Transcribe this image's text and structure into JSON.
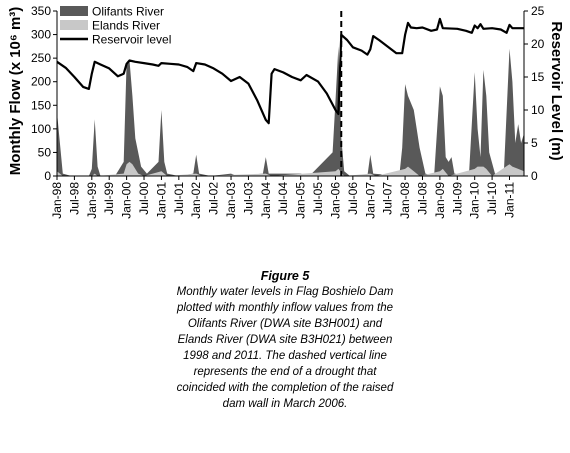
{
  "chart_data": {
    "type": "area+line",
    "ylabel_left": "Monthly Flow (x 10⁶ m³)",
    "ylabel_right": "Reservoir Level (m)",
    "ylim_left": [
      0,
      350
    ],
    "ylim_right": [
      0,
      25
    ],
    "yticks_left": [
      "0",
      "50",
      "100",
      "150",
      "200",
      "250",
      "300",
      "350"
    ],
    "yticks_right": [
      "0",
      "5",
      "10",
      "15",
      "20",
      "25"
    ],
    "x_start": "Jan-98",
    "x_end": "Jun-11",
    "x_ticks": [
      "Jan-98",
      "Jul-98",
      "Jan-99",
      "Jul-99",
      "Jan-00",
      "Jul-00",
      "Jan-01",
      "Jul-01",
      "Jan-02",
      "Jul-02",
      "Jan-03",
      "Jul-03",
      "Jan-04",
      "Jul-04",
      "Jan-05",
      "Jul-05",
      "Jan-06",
      "Jul-06",
      "Jan-07",
      "Jul-07",
      "Jan-08",
      "Jul-08",
      "Jan-09",
      "Jul-09",
      "Jan-10",
      "Jul-10",
      "Jan-11"
    ],
    "legend_placement": "top-left",
    "marker": {
      "date": "Mar-06"
    },
    "series": [
      {
        "name": "Olifants River",
        "kind": "area",
        "axis": "left",
        "color": "#595959",
        "points": [
          [
            "Jan-98",
            135
          ],
          [
            "Mar-98",
            5
          ],
          [
            "Jun-98",
            0
          ],
          [
            "Dec-98",
            0
          ],
          [
            "Jan-99",
            15
          ],
          [
            "Feb-99",
            120
          ],
          [
            "Mar-99",
            20
          ],
          [
            "Apr-99",
            0
          ],
          [
            "Sep-99",
            0
          ],
          [
            "Dec-99",
            30
          ],
          [
            "Jan-00",
            240
          ],
          [
            "Feb-00",
            245
          ],
          [
            "Mar-00",
            170
          ],
          [
            "Apr-00",
            80
          ],
          [
            "Jun-00",
            20
          ],
          [
            "Aug-00",
            5
          ],
          [
            "Dec-00",
            30
          ],
          [
            "Jan-01",
            140
          ],
          [
            "Feb-01",
            30
          ],
          [
            "Mar-01",
            5
          ],
          [
            "Jul-01",
            0
          ],
          [
            "Dec-01",
            5
          ],
          [
            "Jan-02",
            45
          ],
          [
            "Feb-02",
            5
          ],
          [
            "Jun-02",
            0
          ],
          [
            "Jan-03",
            5
          ],
          [
            "Mar-03",
            0
          ],
          [
            "Dec-03",
            5
          ],
          [
            "Jan-04",
            40
          ],
          [
            "Feb-04",
            5
          ],
          [
            "Jan-05",
            5
          ],
          [
            "Apr-05",
            0
          ],
          [
            "Dec-05",
            50
          ],
          [
            "Jan-06",
            160
          ],
          [
            "Feb-06",
            275
          ],
          [
            "Mar-06",
            80
          ],
          [
            "Apr-06",
            10
          ],
          [
            "Jun-06",
            0
          ],
          [
            "Dec-06",
            0
          ],
          [
            "Jan-07",
            45
          ],
          [
            "Feb-07",
            5
          ],
          [
            "Nov-07",
            0
          ],
          [
            "Dec-07",
            60
          ],
          [
            "Jan-08",
            195
          ],
          [
            "Feb-08",
            170
          ],
          [
            "Apr-08",
            140
          ],
          [
            "Jun-08",
            60
          ],
          [
            "Aug-08",
            5
          ],
          [
            "Nov-08",
            0
          ],
          [
            "Jan-09",
            190
          ],
          [
            "Feb-09",
            170
          ],
          [
            "Mar-09",
            40
          ],
          [
            "Apr-09",
            30
          ],
          [
            "May-09",
            40
          ],
          [
            "Jun-09",
            5
          ],
          [
            "Nov-09",
            0
          ],
          [
            "Jan-10",
            220
          ],
          [
            "Feb-10",
            100
          ],
          [
            "Mar-10",
            40
          ],
          [
            "Apr-10",
            225
          ],
          [
            "May-10",
            170
          ],
          [
            "Jun-10",
            50
          ],
          [
            "Aug-10",
            5
          ],
          [
            "Nov-10",
            0
          ],
          [
            "Jan-11",
            270
          ],
          [
            "Feb-11",
            200
          ],
          [
            "Mar-11",
            70
          ],
          [
            "Apr-11",
            110
          ],
          [
            "May-11",
            70
          ],
          [
            "Jun-11",
            90
          ]
        ]
      },
      {
        "name": "Elands River",
        "kind": "area",
        "axis": "left",
        "color": "#c8c8c8",
        "points": [
          [
            "Jan-98",
            10
          ],
          [
            "Feb-98",
            5
          ],
          [
            "Mar-98",
            0
          ],
          [
            "Jan-99",
            0
          ],
          [
            "Feb-99",
            5
          ],
          [
            "Mar-99",
            0
          ],
          [
            "Dec-99",
            5
          ],
          [
            "Jan-00",
            25
          ],
          [
            "Feb-00",
            30
          ],
          [
            "Mar-00",
            25
          ],
          [
            "May-00",
            5
          ],
          [
            "Jul-00",
            0
          ],
          [
            "Jan-01",
            10
          ],
          [
            "Mar-01",
            0
          ],
          [
            "Jan-02",
            5
          ],
          [
            "Mar-02",
            0
          ],
          [
            "Jan-04",
            5
          ],
          [
            "Mar-04",
            0
          ],
          [
            "Jan-06",
            10
          ],
          [
            "Feb-06",
            15
          ],
          [
            "Apr-06",
            0
          ],
          [
            "Jan-07",
            5
          ],
          [
            "Mar-07",
            0
          ],
          [
            "Jan-08",
            15
          ],
          [
            "Feb-08",
            20
          ],
          [
            "Apr-08",
            10
          ],
          [
            "Jun-08",
            0
          ],
          [
            "Jan-09",
            10
          ],
          [
            "Feb-09",
            15
          ],
          [
            "Apr-09",
            0
          ],
          [
            "Jan-10",
            15
          ],
          [
            "Feb-10",
            20
          ],
          [
            "Apr-10",
            20
          ],
          [
            "May-10",
            15
          ],
          [
            "Jul-10",
            0
          ],
          [
            "Jan-11",
            25
          ],
          [
            "Feb-11",
            20
          ],
          [
            "Apr-11",
            15
          ],
          [
            "Jun-11",
            10
          ]
        ]
      },
      {
        "name": "Reservoir level",
        "kind": "line",
        "axis": "right",
        "color": "#000000",
        "points": [
          [
            "Jan-98",
            17.3
          ],
          [
            "Apr-98",
            16.4
          ],
          [
            "Jul-98",
            15.0
          ],
          [
            "Oct-98",
            13.5
          ],
          [
            "Dec-98",
            13.2
          ],
          [
            "Jan-99",
            15.5
          ],
          [
            "Feb-99",
            17.3
          ],
          [
            "Apr-99",
            16.9
          ],
          [
            "Jul-99",
            16.3
          ],
          [
            "Oct-99",
            15.1
          ],
          [
            "Dec-99",
            15.5
          ],
          [
            "Jan-00",
            17.0
          ],
          [
            "Feb-00",
            17.5
          ],
          [
            "Apr-00",
            17.3
          ],
          [
            "Jul-00",
            17.1
          ],
          [
            "Oct-00",
            16.9
          ],
          [
            "Dec-00",
            16.7
          ],
          [
            "Jan-01",
            17.1
          ],
          [
            "Apr-01",
            17.0
          ],
          [
            "Jul-01",
            16.9
          ],
          [
            "Oct-01",
            16.5
          ],
          [
            "Dec-01",
            15.9
          ],
          [
            "Jan-02",
            17.1
          ],
          [
            "Apr-02",
            16.9
          ],
          [
            "Jul-02",
            16.3
          ],
          [
            "Oct-02",
            15.5
          ],
          [
            "Jan-03",
            14.4
          ],
          [
            "Apr-03",
            15.0
          ],
          [
            "Jul-03",
            14.0
          ],
          [
            "Oct-03",
            11.5
          ],
          [
            "Jan-04",
            8.5
          ],
          [
            "Feb-04",
            8.0
          ],
          [
            "Mar-04",
            15.5
          ],
          [
            "Apr-04",
            16.2
          ],
          [
            "Jul-04",
            15.7
          ],
          [
            "Oct-04",
            15.0
          ],
          [
            "Jan-05",
            14.5
          ],
          [
            "Mar-05",
            15.3
          ],
          [
            "Jul-05",
            14.3
          ],
          [
            "Oct-05",
            12.5
          ],
          [
            "Jan-06",
            10.0
          ],
          [
            "Feb-06",
            9.4
          ],
          [
            "Mar-06",
            21.4
          ],
          [
            "May-06",
            20.6
          ],
          [
            "Jul-06",
            19.5
          ],
          [
            "Oct-06",
            19.0
          ],
          [
            "Dec-06",
            18.4
          ],
          [
            "Jan-07",
            19.2
          ],
          [
            "Feb-07",
            21.2
          ],
          [
            "Apr-07",
            20.6
          ],
          [
            "Jul-07",
            19.6
          ],
          [
            "Oct-07",
            18.6
          ],
          [
            "Dec-07",
            18.6
          ],
          [
            "Jan-08",
            21.4
          ],
          [
            "Feb-08",
            23.2
          ],
          [
            "Mar-08",
            22.5
          ],
          [
            "May-08",
            22.4
          ],
          [
            "Jul-08",
            22.5
          ],
          [
            "Oct-08",
            22.0
          ],
          [
            "Dec-08",
            22.2
          ],
          [
            "Jan-09",
            23.8
          ],
          [
            "Feb-09",
            22.4
          ],
          [
            "Jul-09",
            22.3
          ],
          [
            "Oct-09",
            22.0
          ],
          [
            "Dec-09",
            21.7
          ],
          [
            "Jan-10",
            22.8
          ],
          [
            "Feb-10",
            22.4
          ],
          [
            "Mar-10",
            23.0
          ],
          [
            "Apr-10",
            22.3
          ],
          [
            "Jul-10",
            22.4
          ],
          [
            "Oct-10",
            22.2
          ],
          [
            "Dec-10",
            21.7
          ],
          [
            "Jan-11",
            22.9
          ],
          [
            "Feb-11",
            22.4
          ],
          [
            "Jun-11",
            22.4
          ]
        ]
      }
    ]
  },
  "caption": {
    "title": "Figure 5",
    "body": "Monthly water levels in Flag Boshielo Dam plotted with monthly inflow values from the Olifants River (DWA site B3H001) and Elands River (DWA site B3H021) between 1998 and 2011. The dashed vertical line represents the end of a drought that coincided with the completion of the raised dam wall in March 2006."
  }
}
